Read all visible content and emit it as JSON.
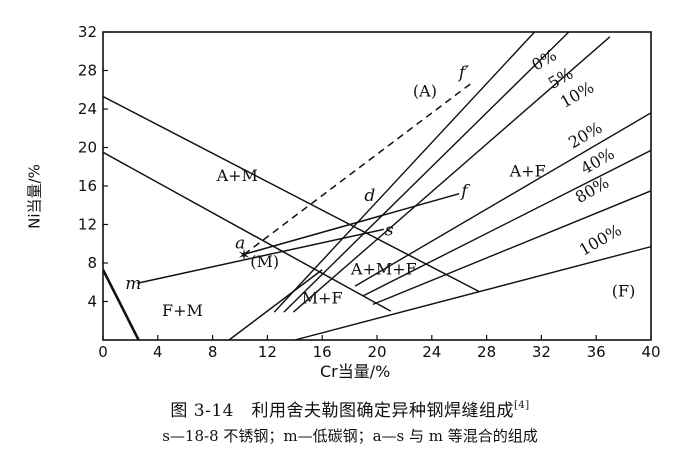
{
  "chart_data": {
    "type": "diagram",
    "xlim": [
      0,
      40
    ],
    "ylim": [
      0,
      32
    ],
    "x_ticks": [
      0,
      4,
      8,
      12,
      16,
      20,
      24,
      28,
      32,
      36,
      40
    ],
    "y_ticks": [
      4,
      8,
      12,
      16,
      20,
      24,
      28,
      32
    ],
    "xlabel": "Cr当量/%",
    "ylabel": "Ni当量/%",
    "regions": [
      {
        "label": "(A)",
        "x": 23.5,
        "y": 25.3
      },
      {
        "label": "A+M",
        "x": 9.8,
        "y": 16.5
      },
      {
        "label": "(M)",
        "x": 11.8,
        "y": 7.6
      },
      {
        "label": "M+F",
        "x": 16.0,
        "y": 3.8
      },
      {
        "label": "F+M",
        "x": 5.8,
        "y": 2.5
      },
      {
        "label": "A+M+F",
        "x": 20.5,
        "y": 6.8
      },
      {
        "label": "A+F",
        "x": 31.0,
        "y": 17.0
      },
      {
        "label": "(F)",
        "x": 38.0,
        "y": 4.5
      }
    ],
    "ferrite_lines": [
      {
        "label": "0%",
        "points": [
          [
            12.5,
            2.9
          ],
          [
            31.5,
            32.0
          ]
        ],
        "label_at": [
          32.4,
          28.6
        ]
      },
      {
        "label": "5%",
        "points": [
          [
            13.2,
            2.9
          ],
          [
            34.0,
            32.0
          ]
        ],
        "label_at": [
          33.6,
          26.7
        ]
      },
      {
        "label": "10%",
        "points": [
          [
            13.9,
            2.9
          ],
          [
            37.0,
            31.5
          ]
        ],
        "label_at": [
          34.8,
          25.0
        ]
      },
      {
        "label": "20%",
        "points": [
          [
            18.4,
            5.6
          ],
          [
            40.0,
            23.6
          ]
        ],
        "label_at": [
          35.4,
          20.8
        ]
      },
      {
        "label": "40%",
        "points": [
          [
            19.0,
            4.6
          ],
          [
            40.0,
            19.7
          ]
        ],
        "label_at": [
          36.3,
          18.1
        ]
      },
      {
        "label": "80%",
        "points": [
          [
            19.7,
            3.7
          ],
          [
            40.0,
            15.5
          ]
        ],
        "label_at": [
          35.9,
          15.1
        ]
      },
      {
        "label": "100%",
        "points": [
          [
            14.0,
            0.0
          ],
          [
            40.0,
            9.7
          ]
        ],
        "label_at": [
          36.5,
          9.9
        ]
      }
    ],
    "boundaries": [
      {
        "name": "A/A+M upper",
        "points": [
          [
            0,
            25.3
          ],
          [
            27.5,
            5.0
          ]
        ]
      },
      {
        "name": "A+M lower",
        "points": [
          [
            0,
            19.5
          ],
          [
            21.0,
            3.0
          ]
        ]
      },
      {
        "name": "M+F/F+M",
        "points": [
          [
            0,
            7.3
          ],
          [
            2.6,
            0.0
          ]
        ]
      },
      {
        "name": "M lower",
        "points": [
          [
            9.2,
            0.0
          ],
          [
            16.0,
            7.3
          ]
        ]
      }
    ],
    "points": [
      {
        "label": "m",
        "x": 2.5,
        "y": 5.9
      },
      {
        "label": "a",
        "x": 10.3,
        "y": 8.9
      },
      {
        "label": "d",
        "x": 19.3,
        "y": 13.8
      },
      {
        "label": "s",
        "x": 20.5,
        "y": 11.5
      },
      {
        "label": "f",
        "x": 26.0,
        "y": 15.2
      },
      {
        "label": "f′",
        "x": 27.0,
        "y": 26.8
      }
    ],
    "tie_lines": [
      {
        "from": "m",
        "to": "s",
        "style": "solid"
      },
      {
        "from": "a",
        "to": "f",
        "style": "solid"
      },
      {
        "from": "a",
        "to": "f′",
        "style": "dashed"
      }
    ]
  },
  "caption": {
    "title": "图 3-14　利用舍夫勒图确定异种钢焊缝组成",
    "ref": "[4]",
    "note": "s—18-8 不锈钢；m—低碳钢；a—s 与 m 等混合的组成"
  }
}
